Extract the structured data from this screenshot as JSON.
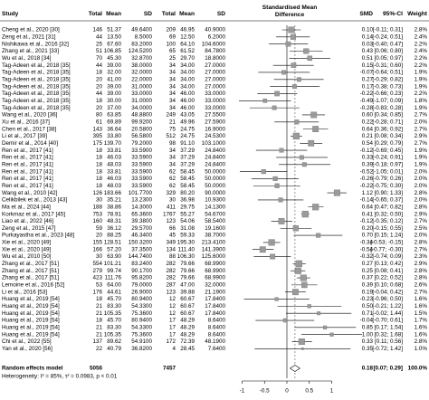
{
  "header": {
    "study": "Study",
    "total_e": "Total",
    "mean_e": "Mean",
    "sd_e": "SD",
    "total_c": "Total",
    "mean_c": "Mean",
    "sd_c": "SD",
    "plot_line1": "Standardised Mean",
    "plot_line2": "Difference",
    "smd": "SMD",
    "ci": "95%-CI",
    "weight": "Weight"
  },
  "rows": [
    {
      "study": "Cheng et al., 2020 [30]",
      "total_e": "146",
      "mean_e": "51.37",
      "sd_e": "49.6400",
      "total_c": "209",
      "mean_c": "46.95",
      "sd_c": "40.9000",
      "smd": "0.10",
      "ci": "[-0.11; 0.31]",
      "weight": "2.8%"
    },
    {
      "study": "Zeng et al., 2021 [31]",
      "total_e": "44",
      "mean_e": "13.50",
      "sd_e": "8.5000",
      "total_c": "69",
      "mean_c": "12.50",
      "sd_c": "6.2000",
      "smd": "0.14",
      "ci": "[-0.24; 0.51]",
      "weight": "2.4%"
    },
    {
      "study": "Nishikawa et al., 2016 [32]",
      "total_e": "25",
      "mean_e": "67.60",
      "sd_e": "83.2000",
      "total_c": "100",
      "mean_c": "64.10",
      "sd_c": "104.6000",
      "smd": "0.03",
      "ci": "[-0.40; 0.47]",
      "weight": "2.2%"
    },
    {
      "study": "Zhang et al., 2021 [33]",
      "total_e": "51",
      "mean_e": "106.85",
      "sd_e": "124.5200",
      "total_c": "65",
      "mean_c": "61.52",
      "sd_c": "84.7800",
      "smd": "0.43",
      "ci": "[0.06; 0.80]",
      "weight": "2.4%"
    },
    {
      "study": "Wu et al., 2018 [34]",
      "total_e": "70",
      "mean_e": "45.30",
      "sd_e": "32.8700",
      "total_c": "25",
      "mean_c": "29.70",
      "sd_c": "18.8000",
      "smd": "0.51",
      "ci": "[0.05; 0.97]",
      "weight": "2.2%"
    },
    {
      "study": "Tag-Adeen et al., 2018 [35]",
      "total_e": "44",
      "mean_e": "39.00",
      "sd_e": "38.0000",
      "total_c": "34",
      "mean_c": "34.00",
      "sd_c": "27.0000",
      "smd": "0.15",
      "ci": "[-0.31; 0.60]",
      "weight": "2.2%"
    },
    {
      "study": "Tag-Adeen et al., 2018 [35]",
      "total_e": "18",
      "mean_e": "32.00",
      "sd_e": "32.0000",
      "total_c": "34",
      "mean_c": "34.00",
      "sd_c": "27.0000",
      "smd": "-0.07",
      "ci": "[-0.64; 0.51]",
      "weight": "1.9%"
    },
    {
      "study": "Tag-Adeen et al., 2018 [35]",
      "total_e": "20",
      "mean_e": "41.00",
      "sd_e": "22.0000",
      "total_c": "34",
      "mean_c": "34.00",
      "sd_c": "27.0000",
      "smd": "0.27",
      "ci": "[-0.29; 0.82]",
      "weight": "1.9%"
    },
    {
      "study": "Tag-Adeen et al., 2018 [35]",
      "total_e": "20",
      "mean_e": "39.00",
      "sd_e": "31.0000",
      "total_c": "34",
      "mean_c": "34.00",
      "sd_c": "27.0000",
      "smd": "0.17",
      "ci": "[-0.38; 0.73]",
      "weight": "1.9%"
    },
    {
      "study": "Tag-Adeen et al., 2018 [35]",
      "total_e": "44",
      "mean_e": "39.00",
      "sd_e": "33.0000",
      "total_c": "34",
      "mean_c": "46.00",
      "sd_c": "33.0000",
      "smd": "-0.22",
      "ci": "[-0.66; 0.23]",
      "weight": "2.2%"
    },
    {
      "study": "Tag-Adeen et al., 2018 [35]",
      "total_e": "18",
      "mean_e": "30.00",
      "sd_e": "31.0000",
      "total_c": "34",
      "mean_c": "46.00",
      "sd_c": "33.0000",
      "smd": "-0.49",
      "ci": "[-1.07; 0.09]",
      "weight": "1.8%"
    },
    {
      "study": "Tag-Adeen et al., 2018 [35]",
      "total_e": "20",
      "mean_e": "37.00",
      "sd_e": "34.0000",
      "total_c": "34",
      "mean_c": "46.00",
      "sd_c": "33.0000",
      "smd": "-0.28",
      "ci": "[-0.83; 0.28]",
      "weight": "1.9%"
    },
    {
      "study": "Wang et al., 2020 [36]",
      "total_e": "80",
      "mean_e": "63.85",
      "sd_e": "48.8800",
      "total_c": "249",
      "mean_c": "43.05",
      "sd_c": "27.5500",
      "smd": "0.60",
      "ci": "[0.34; 0.85]",
      "weight": "2.7%"
    },
    {
      "study": "Xu et al., 2016 [37]",
      "total_e": "61",
      "mean_e": "69.89",
      "sd_e": "99.9200",
      "total_c": "21",
      "mean_c": "49.96",
      "sd_c": "27.5900",
      "smd": "0.22",
      "ci": "[-0.28; 0.71]",
      "weight": "2.0%"
    },
    {
      "study": "Chen et al., 2017 [38]",
      "total_e": "143",
      "mean_e": "36.64",
      "sd_e": "20.5800",
      "total_c": "75",
      "mean_c": "24.75",
      "sd_c": "16.9000",
      "smd": "0.64",
      "ci": "[0.36; 0.92]",
      "weight": "2.7%"
    },
    {
      "study": "Li et al., 2017 [39]",
      "total_e": "395",
      "mean_e": "33.80",
      "sd_e": "56.5800",
      "total_c": "512",
      "mean_c": "24.75",
      "sd_c": "24.5300",
      "smd": "0.21",
      "ci": "[0.08; 0.34]",
      "weight": "2.9%"
    },
    {
      "study": "Demir et al., 2014 [40]",
      "total_e": "175",
      "mean_e": "139.70",
      "sd_e": "79.2000",
      "total_c": "98",
      "mean_c": "91.10",
      "sd_c": "103.1000",
      "smd": "0.54",
      "ci": "[0.29; 0.79]",
      "weight": "2.7%"
    },
    {
      "study": "Ren et al., 2017 [41]",
      "total_e": "18",
      "mean_e": "33.81",
      "sd_e": "33.5900",
      "total_c": "34",
      "mean_c": "37.29",
      "sd_c": "24.8400",
      "smd": "-0.12",
      "ci": "[-0.69; 0.45]",
      "weight": "1.9%"
    },
    {
      "study": "Ren et al., 2017 [41]",
      "total_e": "18",
      "mean_e": "46.03",
      "sd_e": "33.5900",
      "total_c": "34",
      "mean_c": "37.29",
      "sd_c": "24.8400",
      "smd": "0.33",
      "ci": "[-0.24; 0.91]",
      "weight": "1.9%"
    },
    {
      "study": "Ren et al., 2017 [41]",
      "total_e": "18",
      "mean_e": "48.03",
      "sd_e": "33.5900",
      "total_c": "34",
      "mean_c": "37.29",
      "sd_c": "24.8400",
      "smd": "0.39",
      "ci": "[-0.18; 0.97]",
      "weight": "1.9%"
    },
    {
      "study": "Ren et al., 2017 [41]",
      "total_e": "18",
      "mean_e": "33.81",
      "sd_e": "33.5900",
      "total_c": "62",
      "mean_c": "58.45",
      "sd_c": "50.0000",
      "smd": "-0.52",
      "ci": "[-1.05; 0.01]",
      "weight": "2.0%"
    },
    {
      "study": "Ren et al., 2017 [41]",
      "total_e": "18",
      "mean_e": "46.03",
      "sd_e": "33.5900",
      "total_c": "62",
      "mean_c": "58.45",
      "sd_c": "50.0000",
      "smd": "-0.26",
      "ci": "[-0.79; 0.26]",
      "weight": "2.0%"
    },
    {
      "study": "Ren et al., 2017 [41]",
      "total_e": "18",
      "mean_e": "48.03",
      "sd_e": "33.5900",
      "total_c": "62",
      "mean_c": "58.45",
      "sd_c": "50.0000",
      "smd": "-0.22",
      "ci": "[-0.75; 0.30]",
      "weight": "2.0%"
    },
    {
      "study": "Wang et al., 2010 [42]",
      "total_e": "126",
      "mean_e": "183.66",
      "sd_e": "101.7700",
      "total_c": "329",
      "mean_c": "80.20",
      "sd_c": "90.0000",
      "smd": "1.12",
      "ci": "[0.90; 1.33]",
      "weight": "2.8%"
    },
    {
      "study": "Celikbilek et al., 2013 [43]",
      "total_e": "30",
      "mean_e": "35.21",
      "sd_e": "13.2300",
      "total_c": "30",
      "mean_c": "36.98",
      "sd_c": "10.9300",
      "smd": "-0.14",
      "ci": "[-0.65; 0.37]",
      "weight": "2.0%"
    },
    {
      "study": "Ma et al., 2024 [44]",
      "total_e": "188",
      "mean_e": "38.86",
      "sd_e": "14.3000",
      "total_c": "411",
      "mean_c": "29.75",
      "sd_c": "14.1300",
      "smd": "0.64",
      "ci": "[0.47; 0.82]",
      "weight": "2.8%"
    },
    {
      "study": "Korkmaz et al., 2017 [45]",
      "total_e": "753",
      "mean_e": "78.91",
      "sd_e": "65.3600",
      "total_c": "1767",
      "mean_c": "55.27",
      "sd_c": "54.6700",
      "smd": "0.41",
      "ci": "[0.32; 0.50]",
      "weight": "2.9%"
    },
    {
      "study": "Liao et al., 2022 [46]",
      "total_e": "160",
      "mean_e": "48.31",
      "sd_e": "39.3800",
      "total_c": "123",
      "mean_c": "54.06",
      "sd_c": "58.5400",
      "smd": "-0.12",
      "ci": "[-0.35; 0.12]",
      "weight": "2.7%"
    },
    {
      "study": "Zeng et al., 2015 [47]",
      "total_e": "59",
      "mean_e": "36.12",
      "sd_e": "29.5700",
      "total_c": "66",
      "mean_c": "31.08",
      "sd_c": "19.1600",
      "smd": "0.20",
      "ci": "[-0.15; 0.55]",
      "weight": "2.5%"
    },
    {
      "study": "Purkayastha et al., 2023 [48]",
      "total_e": "20",
      "mean_e": "88.25",
      "sd_e": "46.3400",
      "total_c": "45",
      "mean_c": "59.33",
      "sd_c": "38.7000",
      "smd": "0.70",
      "ci": "[0.15; 1.24]",
      "weight": "2.0%"
    },
    {
      "study": "Xie et al., 2020 [49]",
      "total_e": "155",
      "mean_e": "128.51",
      "sd_e": "150.3200",
      "total_c": "349",
      "mean_c": "195.30",
      "sd_c": "213.4100",
      "smd": "-0.34",
      "ci": "[-0.53; -0.15]",
      "weight": "2.8%"
    },
    {
      "study": "Xie et al., 2020 [49]",
      "total_e": "166",
      "mean_e": "57.20",
      "sd_e": "37.3500",
      "total_c": "134",
      "mean_c": "111.40",
      "sd_c": "141.3900",
      "smd": "-0.54",
      "ci": "[-0.77; -0.30]",
      "weight": "2.7%"
    },
    {
      "study": "Wu et al., 2010 [50]",
      "total_e": "30",
      "mean_e": "63.90",
      "sd_e": "144.7400",
      "total_c": "88",
      "mean_c": "106.30",
      "sd_c": "125.6000",
      "smd": "-0.32",
      "ci": "[-0.74; 0.09]",
      "weight": "2.3%"
    },
    {
      "study": "Zhang et al., 2017 [51]",
      "total_e": "554",
      "mean_e": "101.21",
      "sd_e": "83.2400",
      "total_c": "282",
      "mean_c": "79.66",
      "sd_c": "68.9900",
      "smd": "0.27",
      "ci": "[0.13; 0.42]",
      "weight": "2.9%"
    },
    {
      "study": "Zhang et al., 2017 [51]",
      "total_e": "279",
      "mean_e": "99.74",
      "sd_e": "90.1700",
      "total_c": "282",
      "mean_c": "79.66",
      "sd_c": "68.9900",
      "smd": "0.25",
      "ci": "[0.08; 0.41]",
      "weight": "2.8%"
    },
    {
      "study": "Zhang et al., 2017 [51]",
      "total_e": "423",
      "mean_e": "111.76",
      "sd_e": "95.8200",
      "total_c": "282",
      "mean_c": "79.66",
      "sd_c": "68.9900",
      "smd": "0.37",
      "ci": "[0.22; 0.52]",
      "weight": "2.8%"
    },
    {
      "study": "Lemoine et al., 2016 [52]",
      "total_e": "53",
      "mean_e": "64.00",
      "sd_e": "79.0000",
      "total_c": "287",
      "mean_c": "47.00",
      "sd_c": "32.0000",
      "smd": "0.39",
      "ci": "[0.10; 0.68]",
      "weight": "2.6%"
    },
    {
      "study": "Li et al., 2016 [53]",
      "total_e": "176",
      "mean_e": "44.61",
      "sd_e": "26.9000",
      "total_c": "123",
      "mean_c": "39.88",
      "sd_c": "21.1900",
      "smd": "0.19",
      "ci": "[-0.04; 0.42]",
      "weight": "2.7%"
    },
    {
      "study": "Huang et al., 2019 [54]",
      "total_e": "18",
      "mean_e": "45.70",
      "sd_e": "80.9400",
      "total_c": "12",
      "mean_c": "60.67",
      "sd_c": "17.8400",
      "smd": "-0.23",
      "ci": "[-0.96; 0.50]",
      "weight": "1.6%"
    },
    {
      "study": "Huang et al., 2019 [54]",
      "total_e": "21",
      "mean_e": "83.30",
      "sd_e": "54.3300",
      "total_c": "12",
      "mean_c": "60.67",
      "sd_c": "17.8400",
      "smd": "0.50",
      "ci": "[-0.21; 1.22]",
      "weight": "1.6%"
    },
    {
      "study": "Huang et al., 2019 [54]",
      "total_e": "21",
      "mean_e": "105.35",
      "sd_e": "75.3600",
      "total_c": "12",
      "mean_c": "60.67",
      "sd_c": "17.8400",
      "smd": "0.71",
      "ci": "[-0.02; 1.44]",
      "weight": "1.5%"
    },
    {
      "study": "Huang et al., 2019 [54]",
      "total_e": "18",
      "mean_e": "45.70",
      "sd_e": "80.9400",
      "total_c": "17",
      "mean_c": "48.29",
      "sd_c": "8.6400",
      "smd": "-0.04",
      "ci": "[-0.70; 0.61]",
      "weight": "1.7%"
    },
    {
      "study": "Huang et al., 2019 [54]",
      "total_e": "21",
      "mean_e": "83.30",
      "sd_e": "54.3300",
      "total_c": "17",
      "mean_c": "48.29",
      "sd_c": "8.6400",
      "smd": "0.85",
      "ci": "[0.17; 1.54]",
      "weight": "1.6%"
    },
    {
      "study": "Huang et al., 2019 [54]",
      "total_e": "21",
      "mean_e": "105.35",
      "sd_e": "75.3600",
      "total_c": "17",
      "mean_c": "48.29",
      "sd_c": "8.6400",
      "smd": "1.00",
      "ci": "[0.32; 1.68]",
      "weight": "1.6%"
    },
    {
      "study": "Chi et al., 2022 [55]",
      "total_e": "137",
      "mean_e": "89.62",
      "sd_e": "54.9100",
      "total_c": "172",
      "mean_c": "72.39",
      "sd_c": "48.1900",
      "smd": "0.33",
      "ci": "[0.11; 0.56]",
      "weight": "2.8%"
    },
    {
      "study": "Yan et al., 2020 [56]",
      "total_e": "22",
      "mean_e": "40.79",
      "sd_e": "36.8200",
      "total_c": "4",
      "mean_c": "28.45",
      "sd_c": "7.6400",
      "smd": "0.35",
      "ci": "[-0.72; 1.42]",
      "weight": "1.0%"
    }
  ],
  "overall": {
    "study": "Random effects model",
    "total_e": "5056",
    "total_c": "7457",
    "smd": "0.18",
    "ci": "[0.07; 0.29]",
    "weight": "100.0%"
  },
  "heterogeneity": "Heterogeneity: I² = 85%, τ² = 0.0983, p < 0.01",
  "axis": {
    "ticks": [
      -1,
      -0.5,
      0,
      0.5,
      1
    ]
  }
}
